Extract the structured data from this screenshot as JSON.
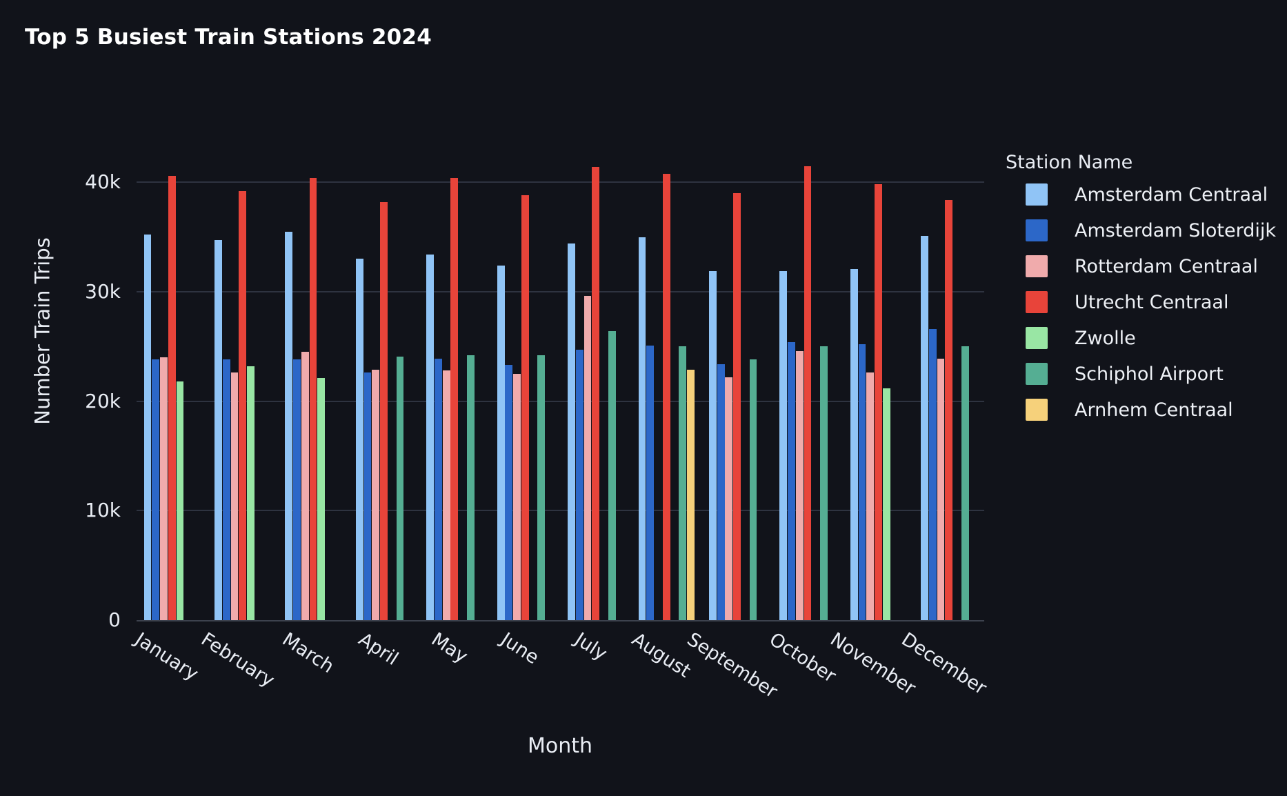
{
  "chart_data": {
    "type": "bar",
    "title": "Top 5 Busiest Train Stations 2024",
    "xlabel": "Month",
    "ylabel": "Number Train Trips",
    "legend_title": "Station Name",
    "legend_position": "right",
    "grid": true,
    "background_color": "#11131a",
    "gridline_color": "#2e3340",
    "text_color": "#e9edf4",
    "categories": [
      "January",
      "February",
      "March",
      "April",
      "May",
      "June",
      "July",
      "August",
      "September",
      "October",
      "November",
      "December"
    ],
    "series": [
      {
        "name": "Amsterdam Centraal",
        "color": "#90c4f6",
        "values": [
          35200,
          34700,
          35500,
          33000,
          33400,
          32400,
          34400,
          35000,
          31900,
          31900,
          32100,
          35100
        ]
      },
      {
        "name": "Amsterdam Sloterdijk",
        "color": "#2c67c8",
        "values": [
          23800,
          23800,
          23800,
          22600,
          23900,
          23300,
          24700,
          25100,
          23400,
          25400,
          25200,
          26600
        ]
      },
      {
        "name": "Rotterdam Centraal",
        "color": "#f0abac",
        "values": [
          24000,
          22600,
          24500,
          22900,
          22800,
          22500,
          29600,
          null,
          22200,
          24600,
          22600,
          23900
        ]
      },
      {
        "name": "Utrecht Centraal",
        "color": "#e8443a",
        "values": [
          40600,
          39200,
          40400,
          38200,
          40400,
          38800,
          41400,
          40800,
          39000,
          41500,
          39800,
          38400
        ]
      },
      {
        "name": "Zwolle",
        "color": "#99e6a4",
        "values": [
          21800,
          23200,
          22100,
          null,
          null,
          null,
          null,
          null,
          null,
          null,
          21200,
          null
        ]
      },
      {
        "name": "Schiphol Airport",
        "color": "#55ae93",
        "values": [
          null,
          null,
          null,
          24100,
          24200,
          24200,
          26400,
          25000,
          23800,
          25000,
          null,
          25000
        ]
      },
      {
        "name": "Arnhem Centraal",
        "color": "#f6d17b",
        "values": [
          null,
          null,
          null,
          null,
          null,
          null,
          null,
          22900,
          null,
          null,
          null,
          null
        ]
      }
    ],
    "yticks": [
      {
        "value": 0,
        "label": "0"
      },
      {
        "value": 10000,
        "label": "10k"
      },
      {
        "value": 20000,
        "label": "20k"
      },
      {
        "value": 30000,
        "label": "30k"
      },
      {
        "value": 40000,
        "label": "40k"
      }
    ],
    "ylim": [
      0,
      43800
    ]
  }
}
